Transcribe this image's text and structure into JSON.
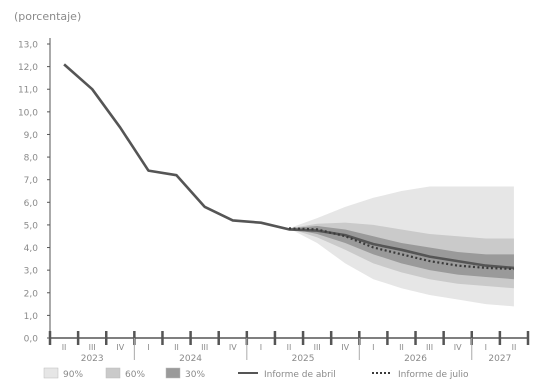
{
  "chart_data": {
    "type": "line",
    "unit_label": "(porcentaje)",
    "ylim": [
      0,
      13
    ],
    "y_ticks": [
      "0,0",
      "1,0",
      "2,0",
      "3,0",
      "4,0",
      "5,0",
      "6,0",
      "7,0",
      "8,0",
      "9,0",
      "10,0",
      "11,0",
      "12,0",
      "13,0"
    ],
    "quarters": [
      "II",
      "III",
      "IV",
      "I",
      "II",
      "III",
      "IV",
      "I",
      "II",
      "III",
      "IV",
      "I",
      "II",
      "III",
      "IV",
      "I",
      "II"
    ],
    "years": [
      {
        "label": "2023",
        "start": 0,
        "end": 2
      },
      {
        "label": "2024",
        "start": 3,
        "end": 6
      },
      {
        "label": "2025",
        "start": 7,
        "end": 10
      },
      {
        "label": "2026",
        "start": 11,
        "end": 14
      },
      {
        "label": "2027",
        "start": 15,
        "end": 16
      }
    ],
    "series": [
      {
        "name": "Informe de abril",
        "style": "solid",
        "values": [
          12.1,
          11.0,
          9.3,
          7.4,
          7.2,
          5.8,
          5.2,
          5.1,
          4.8,
          4.75,
          4.55,
          4.15,
          3.9,
          3.6,
          3.4,
          3.2,
          3.1
        ]
      },
      {
        "name": "Informe de julio",
        "style": "dotted",
        "values": [
          null,
          null,
          null,
          null,
          null,
          null,
          null,
          null,
          4.85,
          4.8,
          4.5,
          4.0,
          3.7,
          3.4,
          3.2,
          3.1,
          3.05
        ]
      }
    ],
    "fan": {
      "start_index": 8,
      "bands": [
        {
          "name": "90%",
          "lower": [
            4.85,
            4.2,
            3.3,
            2.6,
            2.2,
            1.9,
            1.7,
            1.5,
            1.4
          ],
          "upper": [
            4.85,
            5.3,
            5.8,
            6.2,
            6.5,
            6.7,
            6.7,
            6.7,
            6.7
          ]
        },
        {
          "name": "60%",
          "lower": [
            4.85,
            4.45,
            3.9,
            3.3,
            2.9,
            2.6,
            2.4,
            2.3,
            2.2
          ],
          "upper": [
            4.85,
            5.05,
            5.1,
            5.0,
            4.8,
            4.6,
            4.5,
            4.4,
            4.4
          ]
        },
        {
          "name": "30%",
          "lower": [
            4.85,
            4.6,
            4.2,
            3.7,
            3.3,
            3.0,
            2.8,
            2.7,
            2.6
          ],
          "upper": [
            4.85,
            4.95,
            4.8,
            4.5,
            4.2,
            4.0,
            3.8,
            3.7,
            3.7
          ]
        }
      ]
    },
    "legend": [
      "90%",
      "60%",
      "30%",
      "Informe de abril",
      "Informe de julio"
    ],
    "colors": {
      "band90": "#e6e6e6",
      "band60": "#cacaca",
      "band30": "#9a9a9a",
      "line_abril": "#555555",
      "line_julio": "#3a3a3a",
      "axis": "#555555",
      "text": "#8a8a8a"
    }
  }
}
